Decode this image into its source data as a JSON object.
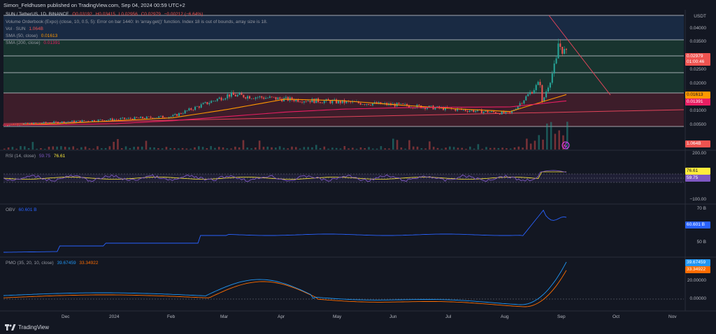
{
  "header": {
    "publisher_text": "Simon_Feldhusen published on TradingView.com, Sep 04, 2024 00:59 UTC+2"
  },
  "main_legend": {
    "symbol": "SUN / TetherUS, 1D, BINANCE",
    "open": "O0.03192",
    "high": "H0.03415",
    "low": "L0.02956",
    "close": "C0.02979",
    "change": "−0.00212 (−6.64%)",
    "orderbook_error": "Volume Orderbook (Expo) (close, 10, 0.5, 5): Error on bar 1440: In 'array.get()' function. Index 18 is out of bounds, array size is 18.",
    "vol_label": "Vol · SUN",
    "vol_value": "1.064B",
    "sma50_label": "SMA (50, close)",
    "sma50_value": "0.01613",
    "sma200_label": "SMA (200, close)",
    "sma200_value": "0.01391"
  },
  "price_axis": {
    "currency": "USDT",
    "ticks": [
      "0.04000",
      "0.03500",
      "0.03000",
      "0.02500",
      "0.02000",
      "0.01500",
      "0.01000",
      "0.00500"
    ],
    "last_price": "0.02979",
    "countdown": "01:00:46",
    "sma50_tag": "0.01613",
    "sma200_tag": "0.01391",
    "volume_tag": "1.064B"
  },
  "rsi": {
    "label": "RSI (14, close)",
    "value": "59.75",
    "ma_value": "76.61",
    "axis_top": "200.00",
    "axis_bottom": "−100.00",
    "tag_ma": "76.61",
    "tag_value": "59.75"
  },
  "obv": {
    "label": "OBV",
    "value": "60.601 B",
    "axis_top": "70 B",
    "axis_mid": "50 B",
    "tag_value": "60.601 B"
  },
  "pmo": {
    "label": "PMO (35, 20, 10, close)",
    "value1": "39.67459",
    "value2": "33.34922",
    "axis_mid": "20.00000",
    "axis_zero": "0.00000",
    "tag1": "39.67459",
    "tag2": "33.34922"
  },
  "time_axis": [
    "Dec",
    "2024",
    "Feb",
    "Mar",
    "Apr",
    "May",
    "Jun",
    "Jul",
    "Aug",
    "Sep",
    "Oct",
    "Nov"
  ],
  "footer": {
    "brand": "TradingView"
  },
  "colors": {
    "background": "#131722",
    "candle_up": "#26a69a",
    "candle_down": "#ef5350",
    "sma50": "#ff9800",
    "sma200": "#e91e63",
    "rsi": "#7e57c2",
    "obv": "#2962ff",
    "pmo1": "#2196f3",
    "pmo2": "#ff6d00",
    "zone_blue": "#1f3a5f",
    "zone_green": "#1e4d3a",
    "zone_red": "#5a2230"
  },
  "chart_data": {
    "type": "line",
    "title": "SUN / TetherUS, 1D, BINANCE",
    "ylabel": "USDT",
    "ylim": [
      0.004,
      0.046
    ],
    "x": [
      "Nov",
      "Dec",
      "2024",
      "Feb",
      "Mar",
      "Apr",
      "May",
      "Jun",
      "Jul",
      "Aug",
      "Sep"
    ],
    "series": [
      {
        "name": "SUN / TetherUS",
        "values": [
          0.0055,
          0.0065,
          0.0075,
          0.0085,
          0.016,
          0.0145,
          0.0135,
          0.0125,
          0.011,
          0.0095,
          0.0298
        ]
      },
      {
        "name": "SMA (50, close)",
        "values": [
          0.0055,
          0.006,
          0.007,
          0.008,
          0.011,
          0.0145,
          0.014,
          0.0125,
          0.0112,
          0.0102,
          0.0161
        ]
      },
      {
        "name": "SMA (200, close)",
        "values": [
          0.0055,
          0.0056,
          0.006,
          0.007,
          0.0085,
          0.01,
          0.011,
          0.0115,
          0.0117,
          0.0118,
          0.0139
        ]
      }
    ]
  }
}
